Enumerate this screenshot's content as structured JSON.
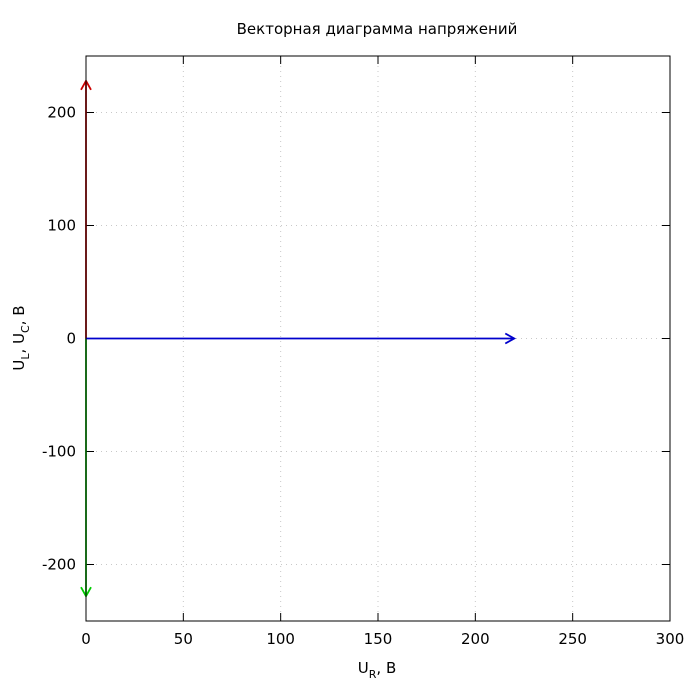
{
  "chart_data": {
    "type": "line",
    "title": "Векторная диаграмма напряжений",
    "xlabel": {
      "main": "U",
      "sub": "R",
      "suffix": ", В"
    },
    "ylabel": {
      "parts": [
        {
          "main": "U",
          "sub": "L",
          "suffix": ", "
        },
        {
          "main": "U",
          "sub": "C",
          "suffix": ", В"
        }
      ]
    },
    "xlim": [
      0,
      300
    ],
    "ylim": [
      -250,
      250
    ],
    "xticks": [
      0,
      50,
      100,
      150,
      200,
      250,
      300
    ],
    "yticks": [
      -200,
      -100,
      0,
      100,
      200
    ],
    "grid": true,
    "vectors": [
      {
        "color": "#cc0000",
        "from": [
          0,
          0
        ],
        "to": [
          0,
          228
        ]
      },
      {
        "color": "#00cc00",
        "from": [
          0,
          0
        ],
        "to": [
          0,
          -228
        ]
      },
      {
        "color": "#0000cc",
        "from": [
          0,
          0
        ],
        "to": [
          220,
          0
        ]
      }
    ]
  }
}
